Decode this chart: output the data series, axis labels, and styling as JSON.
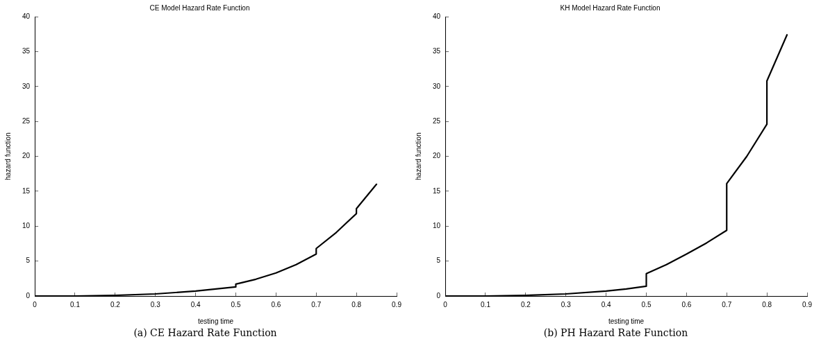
{
  "chart_data": [
    {
      "type": "line",
      "title": "CE Model Hazard Rate Function",
      "xlabel": "testing time",
      "ylabel": "hazard function",
      "annotations": [
        "(a)  CE Hazard Rate Function"
      ],
      "xlim": [
        0,
        0.9
      ],
      "ylim": [
        0,
        40
      ],
      "xticks": [
        0,
        0.1,
        0.2,
        0.3,
        0.4,
        0.5,
        0.6,
        0.7,
        0.8,
        0.9
      ],
      "yticks": [
        0,
        5,
        10,
        15,
        20,
        25,
        30,
        35,
        40
      ],
      "grid": false,
      "legend": false,
      "marker": "none",
      "line_style": "solid",
      "series": [
        {
          "color": "#000000",
          "x": [
            0,
            0.1,
            0.2,
            0.3,
            0.4,
            0.45,
            0.5,
            0.5,
            0.55,
            0.6,
            0.65,
            0.7,
            0.7,
            0.75,
            0.8,
            0.8,
            0.85
          ],
          "values": [
            0,
            0,
            0.1,
            0.3,
            0.7,
            1.0,
            1.3,
            1.7,
            2.4,
            3.3,
            4.5,
            6.0,
            6.8,
            9.1,
            11.8,
            12.5,
            16
          ]
        }
      ]
    },
    {
      "type": "line",
      "title": "KH Model Hazard Rate Function",
      "xlabel": "testing time",
      "ylabel": "hazard function",
      "annotations": [
        "(b)  PH Hazard Rate Function"
      ],
      "xlim": [
        0,
        0.9
      ],
      "ylim": [
        0,
        40
      ],
      "xticks": [
        0,
        0.1,
        0.2,
        0.3,
        0.4,
        0.5,
        0.6,
        0.7,
        0.8,
        0.9
      ],
      "yticks": [
        0,
        5,
        10,
        15,
        20,
        25,
        30,
        35,
        40
      ],
      "grid": false,
      "legend": false,
      "marker": "none",
      "line_style": "solid",
      "series": [
        {
          "color": "#000000",
          "x": [
            0,
            0.1,
            0.2,
            0.3,
            0.4,
            0.45,
            0.5,
            0.5,
            0.55,
            0.6,
            0.65,
            0.7,
            0.7,
            0.75,
            0.8,
            0.8,
            0.85
          ],
          "values": [
            0,
            0,
            0.1,
            0.3,
            0.7,
            1.0,
            1.4,
            3.2,
            4.5,
            6.0,
            7.6,
            9.4,
            16.1,
            20.0,
            24.6,
            30.8,
            37.4
          ]
        }
      ]
    }
  ]
}
